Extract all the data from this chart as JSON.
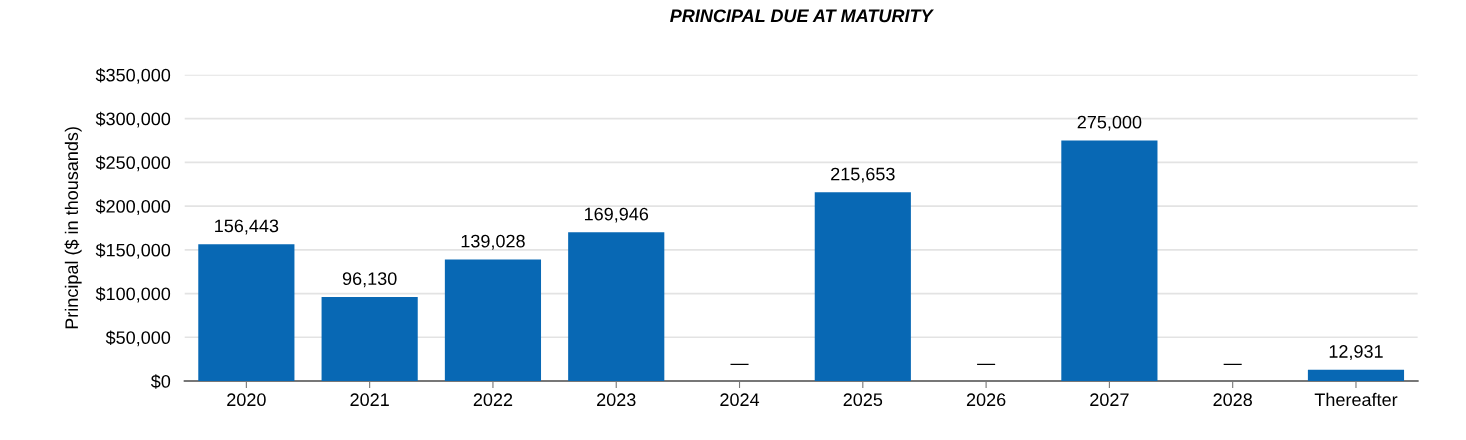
{
  "chart_data": {
    "type": "bar",
    "title": "PRINCIPAL DUE AT MATURITY",
    "ylabel": "Principal ($ in thousands)",
    "categories": [
      "2020",
      "2021",
      "2022",
      "2023",
      "2024",
      "2025",
      "2026",
      "2027",
      "2028",
      "Thereafter"
    ],
    "values": [
      156443,
      96130,
      139028,
      169946,
      0,
      215653,
      0,
      275000,
      0,
      12931
    ],
    "value_labels": [
      "156,443",
      "96,130",
      "139,028",
      "169,946",
      "—",
      "215,653",
      "—",
      "275,000",
      "—",
      "12,931"
    ],
    "color": "#0868b4",
    "ylim": [
      0,
      350000
    ],
    "yticks": [
      {
        "value": 0,
        "label": "$0"
      },
      {
        "value": 50000,
        "label": "$50,000"
      },
      {
        "value": 100000,
        "label": "$100,000"
      },
      {
        "value": 150000,
        "label": "$150,000"
      },
      {
        "value": 200000,
        "label": "$200,000"
      },
      {
        "value": 250000,
        "label": "$250,000"
      },
      {
        "value": 300000,
        "label": "$300,000"
      },
      {
        "value": 350000,
        "label": "$350,000"
      }
    ],
    "grid": "y",
    "legend": false
  }
}
